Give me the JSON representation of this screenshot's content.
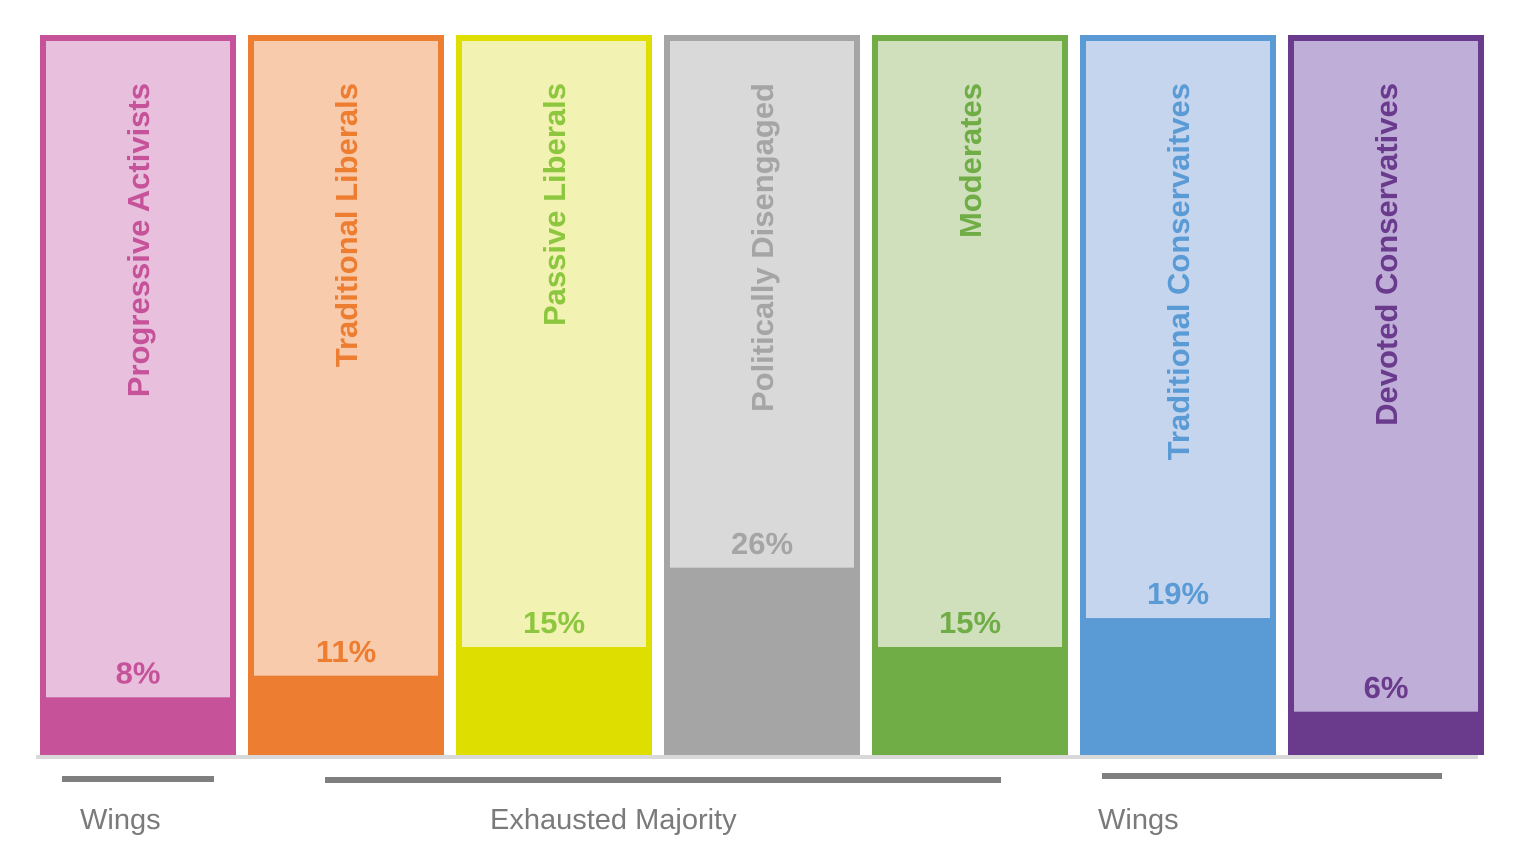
{
  "chart_data": {
    "type": "bar",
    "categories": [
      "Progressive Activists",
      "Traditional Liberals",
      "Passive Liberals",
      "Politically Disengaged",
      "Moderates",
      "Traditional Conservaitves",
      "Devoted Conservatives"
    ],
    "values": [
      8,
      11,
      15,
      26,
      15,
      19,
      6
    ],
    "value_labels": [
      "8%",
      "11%",
      "15%",
      "26%",
      "15%",
      "19%",
      "6%"
    ],
    "ylim": [
      0,
      100
    ],
    "colors": {
      "border": [
        "#c6529a",
        "#ed7d31",
        "#dede00",
        "#a5a5a5",
        "#70ad47",
        "#5b9bd5",
        "#6a3a8c"
      ],
      "fill": [
        "#e8c0dd",
        "#f8cbad",
        "#f2f2b2",
        "#d9d9d9",
        "#d0e0bd",
        "#c5d5ee",
        "#bfaed8"
      ],
      "label": [
        "#c6529a",
        "#ed7d31",
        "#8dc63f",
        "#a5a5a5",
        "#70ad47",
        "#5b9bd5",
        "#6a3a8c"
      ],
      "group_text": "#7a7a7a",
      "group_line": "#7f7f7f",
      "axis_line": "#d9d9d9"
    },
    "groups": [
      {
        "label": "Wings",
        "from": 0,
        "to": 0
      },
      {
        "label": "Exhausted Majority",
        "from": 1,
        "to": 4
      },
      {
        "label": "Wings",
        "from": 5,
        "to": 6
      }
    ],
    "title": "",
    "xlabel": "",
    "ylabel": ""
  }
}
